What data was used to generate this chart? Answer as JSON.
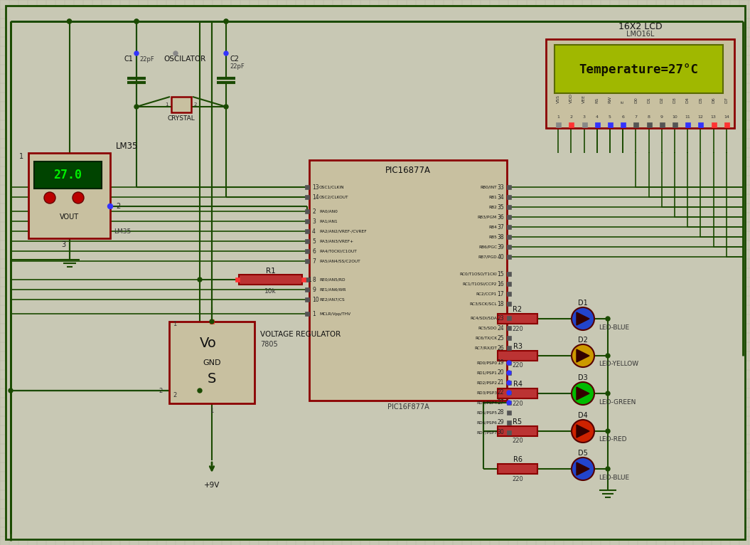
{
  "bg_color": "#c8c8b4",
  "grid_color": "#b0b09e",
  "wire_color": "#1a4a00",
  "component_border": "#8b0000",
  "component_fill": "#c8c0a0",
  "lcd_screen_fill": "#a0b800",
  "lcd_screen_text": "#101000",
  "lcd_text": "Temperature=27°C",
  "lcd_label": "16X2 LCD",
  "lcd_sublabel": "LMO16L",
  "pic_label": "PIC16877A",
  "pic_sublabel": "PIC16F877A",
  "lm35_screen_fill": "#004400",
  "lm35_screen_text": "#00ee00",
  "lm35_value": "27.0",
  "vout_label": "VOUT",
  "lm35_label": "LM35",
  "vreg_label": "VOLTAGE REGULATOR",
  "vreg_sublabel": "7805",
  "gnd_label": "GND",
  "r1_label": "R1",
  "r1_val": "10k",
  "led_blue_color": "#2244cc",
  "led_yellow_color": "#cc9900",
  "led_green_color": "#00bb00",
  "led_red_color": "#cc2200",
  "pin_blue": "#3333ff",
  "pin_red": "#ff3333",
  "pin_gray": "#888888",
  "pin_darkgray": "#555555",
  "resistor_fill": "#bb3333",
  "dot_color": "#1a4a00",
  "power_arrow_color": "#1a6600"
}
